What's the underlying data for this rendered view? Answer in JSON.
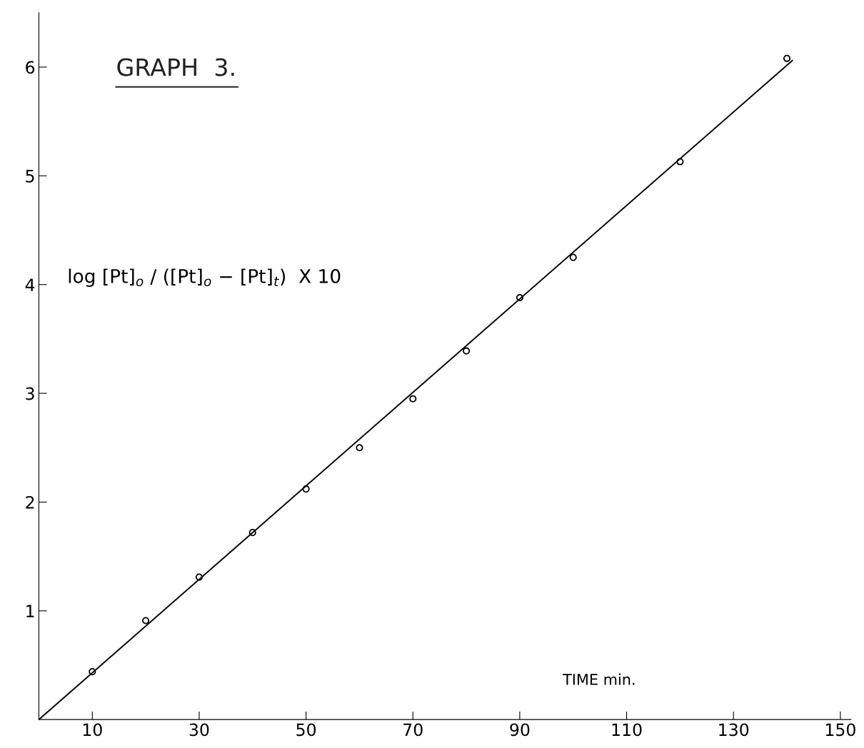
{
  "chart_data": {
    "type": "scatter",
    "title": "GRAPH  3.",
    "xlabel": "TIME min.",
    "ylabel": "log [Pt]$_{o}$ / ([Pt]$_{o}$ − [Pt]$_{t}$)  X 10",
    "series": [
      {
        "color": "#000000",
        "marker": "circle",
        "x": [
          10,
          20,
          30,
          40,
          50,
          60,
          70,
          80,
          90,
          100,
          120,
          140
        ],
        "values": [
          0.44,
          0.91,
          1.31,
          1.72,
          2.12,
          2.5,
          2.95,
          3.39,
          3.88,
          4.25,
          5.13,
          6.08
        ]
      },
      {
        "type": "line",
        "color": "#000000",
        "marker": "none",
        "x": [
          0,
          141
        ],
        "values": [
          0,
          6.06
        ]
      }
    ],
    "xlim": [
      0,
      152
    ],
    "ylim": [
      0,
      6.5
    ],
    "xticks": [
      10,
      30,
      50,
      70,
      90,
      110,
      130,
      150
    ],
    "yticks": [
      1,
      2,
      3,
      4,
      5,
      6
    ],
    "grid": false,
    "legend": false
  }
}
